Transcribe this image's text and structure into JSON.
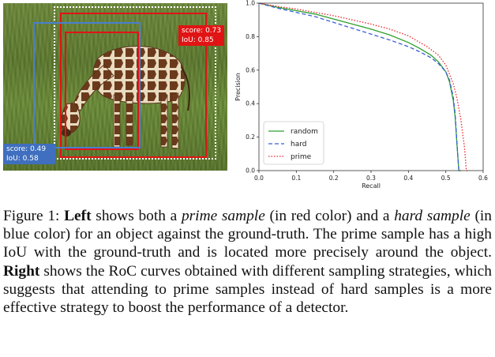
{
  "figure": {
    "left_panel": {
      "prime_tag": {
        "score": "score: 0.73",
        "iou": "IoU: 0.85",
        "color": "#e01414"
      },
      "hard_tag": {
        "score": "score: 0.49",
        "iou": "IoU: 0.58",
        "color": "#3f6fbe"
      }
    },
    "caption": {
      "label": "Figure 1:",
      "s1_bold": "Left",
      "s1_a": "shows both a",
      "s1_prime_italic": "prime sample",
      "s1_b": "(in red color) and a",
      "s1_hard_italic": "hard sample",
      "s1_c": "(in blue color) for an object against the ground-truth. The prime sample has a high IoU with the ground-truth and is located more precisely around the object.",
      "s2_bold": "Right",
      "s2_a": "shows the RoC curves obtained with different sampling strategies, which suggests that attending to prime samples instead of hard samples is a more effective strategy to boost the performance of a detector."
    }
  },
  "chart_data": {
    "type": "line",
    "title": "",
    "xlabel": "Recall",
    "ylabel": "Precision",
    "xlim": [
      0.0,
      0.6
    ],
    "ylim": [
      0.0,
      1.0
    ],
    "xticks": [
      "0.0",
      "0.1",
      "0.2",
      "0.3",
      "0.4",
      "0.5",
      "0.6"
    ],
    "yticks": [
      "0.0",
      "0.2",
      "0.4",
      "0.6",
      "0.8",
      "1.0"
    ],
    "grid": false,
    "legend_position": "lower-left",
    "series": [
      {
        "name": "random",
        "color": "#2ca02c",
        "style": "solid",
        "x": [
          0.0,
          0.05,
          0.1,
          0.15,
          0.2,
          0.25,
          0.3,
          0.35,
          0.4,
          0.43,
          0.46,
          0.48,
          0.5,
          0.51,
          0.52,
          0.525,
          0.53,
          0.535,
          0.54
        ],
        "y": [
          1.0,
          0.975,
          0.955,
          0.935,
          0.905,
          0.875,
          0.845,
          0.81,
          0.765,
          0.73,
          0.69,
          0.65,
          0.59,
          0.53,
          0.42,
          0.32,
          0.15,
          0.0,
          0.0
        ]
      },
      {
        "name": "hard",
        "color": "#3b5fd8",
        "style": "dashed",
        "x": [
          0.0,
          0.05,
          0.1,
          0.15,
          0.2,
          0.25,
          0.3,
          0.35,
          0.4,
          0.43,
          0.46,
          0.48,
          0.5,
          0.51,
          0.52,
          0.525,
          0.53,
          0.535,
          0.54
        ],
        "y": [
          1.0,
          0.97,
          0.945,
          0.92,
          0.885,
          0.85,
          0.815,
          0.78,
          0.74,
          0.71,
          0.675,
          0.64,
          0.59,
          0.54,
          0.44,
          0.34,
          0.16,
          0.0,
          0.0
        ]
      },
      {
        "name": "prime",
        "color": "#e8262a",
        "style": "dotted",
        "x": [
          0.0,
          0.05,
          0.1,
          0.15,
          0.2,
          0.25,
          0.3,
          0.35,
          0.4,
          0.45,
          0.48,
          0.5,
          0.52,
          0.53,
          0.54,
          0.55,
          0.555,
          0.56
        ],
        "y": [
          1.0,
          0.98,
          0.965,
          0.945,
          0.925,
          0.9,
          0.875,
          0.845,
          0.805,
          0.74,
          0.69,
          0.63,
          0.52,
          0.43,
          0.31,
          0.14,
          0.0,
          0.0
        ]
      }
    ]
  }
}
